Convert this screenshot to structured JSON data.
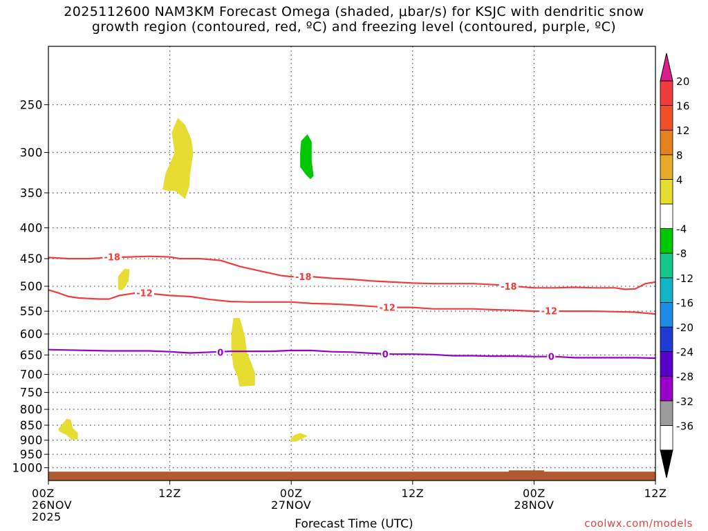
{
  "title_line1": "2025112600 NAM3KM Forecast Omega (shaded, μbar/s) for KSJC with dendritic snow",
  "title_line2": "growth region (contoured, red, ºC) and freezing level (contoured, purple, ºC)",
  "xlabel": "Forecast Time (UTC)",
  "credit": "coolwx.com/models",
  "chart_data": {
    "type": "heatmap",
    "x_axis": {
      "unit": "forecast hour",
      "range": [
        0,
        60
      ],
      "ticks": [
        {
          "x": 0,
          "lines": [
            "00Z",
            "26NOV",
            "2025"
          ]
        },
        {
          "x": 12,
          "lines": [
            "12Z"
          ]
        },
        {
          "x": 24,
          "lines": [
            "00Z",
            "27NOV"
          ]
        },
        {
          "x": 36,
          "lines": [
            "12Z"
          ]
        },
        {
          "x": 48,
          "lines": [
            "00Z",
            "28NOV"
          ]
        },
        {
          "x": 60,
          "lines": [
            "12Z"
          ]
        }
      ]
    },
    "y_axis": {
      "unit": "hPa",
      "scale": "log",
      "inverted": true,
      "range": [
        1050,
        200
      ],
      "ticks": [
        250,
        300,
        350,
        400,
        450,
        500,
        550,
        600,
        650,
        700,
        750,
        800,
        850,
        900,
        950,
        1000
      ]
    },
    "grid": true,
    "colorbar": {
      "ticks": [
        "20",
        "16",
        "12",
        "8",
        "4",
        "-4",
        "-8",
        "-12",
        "-16",
        "-20",
        "-24",
        "-28",
        "-32",
        "-36"
      ],
      "segments": [
        {
          "color": "#ffffff"
        },
        {
          "color": "#9c9c9c"
        },
        {
          "color": "#9600c8"
        },
        {
          "color": "#5a00c8"
        },
        {
          "color": "#1e3cd2"
        },
        {
          "color": "#1e8ce6"
        },
        {
          "color": "#14b4c8"
        },
        {
          "color": "#14c88c"
        },
        {
          "color": "#00c800"
        },
        {
          "color": "#ffffff"
        },
        {
          "color": "#e6dc32"
        },
        {
          "color": "#e6aa28"
        },
        {
          "color": "#e6821e"
        },
        {
          "color": "#f05028"
        },
        {
          "color": "#f03c3c"
        }
      ],
      "bottom_arrow_color": "#000000",
      "top_arrow_color": "#dc1e8c"
    },
    "omega_regions": [
      {
        "color": "#e6dc32",
        "points": [
          [
            11.3,
            345
          ],
          [
            11.6,
            325
          ],
          [
            12.5,
            300
          ],
          [
            12.2,
            278
          ],
          [
            12.8,
            263
          ],
          [
            13.5,
            270
          ],
          [
            14.1,
            285
          ],
          [
            14.3,
            300
          ],
          [
            14.0,
            325
          ],
          [
            13.9,
            342
          ],
          [
            13.5,
            358
          ],
          [
            13.0,
            352
          ],
          [
            12.5,
            347
          ],
          [
            11.8,
            347
          ]
        ]
      },
      {
        "color": "#00c800",
        "points": [
          [
            24.9,
            300
          ],
          [
            25.0,
            287
          ],
          [
            25.6,
            280
          ],
          [
            26.0,
            288
          ],
          [
            26.0,
            310
          ],
          [
            26.2,
            328
          ],
          [
            25.9,
            332
          ],
          [
            25.5,
            327
          ],
          [
            24.9,
            317
          ]
        ]
      },
      {
        "color": "#e6dc32",
        "points": [
          [
            6.9,
            505
          ],
          [
            6.9,
            482
          ],
          [
            7.5,
            468
          ],
          [
            8.0,
            469
          ],
          [
            7.9,
            490
          ],
          [
            7.6,
            500
          ],
          [
            7.3,
            507
          ],
          [
            7.0,
            507
          ]
        ]
      },
      {
        "color": "#e6dc32",
        "points": [
          [
            18.1,
            598
          ],
          [
            18.3,
            565
          ],
          [
            18.9,
            565
          ],
          [
            19.1,
            580
          ],
          [
            19.4,
            605
          ],
          [
            19.6,
            643
          ],
          [
            20.0,
            668
          ],
          [
            20.4,
            695
          ],
          [
            20.4,
            730
          ],
          [
            18.9,
            733
          ],
          [
            18.7,
            705
          ],
          [
            18.3,
            680
          ],
          [
            18.1,
            640
          ]
        ]
      },
      {
        "color": "#e6dc32",
        "points": [
          [
            1.0,
            862
          ],
          [
            1.3,
            850
          ],
          [
            1.8,
            830
          ],
          [
            2.2,
            833
          ],
          [
            2.4,
            860
          ],
          [
            2.9,
            875
          ],
          [
            2.9,
            895
          ],
          [
            2.3,
            898
          ],
          [
            1.8,
            882
          ],
          [
            1.1,
            870
          ]
        ]
      },
      {
        "color": "#e6dc32",
        "points": [
          [
            24.0,
            895
          ],
          [
            24.3,
            883
          ],
          [
            24.9,
            876
          ],
          [
            25.6,
            886
          ],
          [
            25.2,
            892
          ],
          [
            24.6,
            903
          ],
          [
            24.0,
            905
          ]
        ]
      }
    ],
    "ground": {
      "color": "#b05a32",
      "top_hPa": 1015,
      "bump": {
        "x": [
          45.5,
          49.0
        ],
        "top_hPa": 1010
      }
    },
    "contours": [
      {
        "level": "-18",
        "color": "#f03c3c",
        "points": [
          [
            0,
            448
          ],
          [
            2,
            450
          ],
          [
            4,
            450
          ],
          [
            6,
            448
          ],
          [
            8,
            447
          ],
          [
            10,
            446
          ],
          [
            12,
            447
          ],
          [
            13,
            450
          ],
          [
            15,
            450
          ],
          [
            17,
            453
          ],
          [
            19,
            464
          ],
          [
            21,
            472
          ],
          [
            23,
            480
          ],
          [
            24,
            482
          ],
          [
            26,
            482
          ],
          [
            28,
            485
          ],
          [
            30,
            487
          ],
          [
            32,
            490
          ],
          [
            34,
            492
          ],
          [
            36,
            494
          ],
          [
            38,
            495
          ],
          [
            40,
            495
          ],
          [
            42,
            495
          ],
          [
            44,
            497
          ],
          [
            46,
            500
          ],
          [
            48,
            503
          ],
          [
            50,
            503
          ],
          [
            52,
            502
          ],
          [
            54,
            503
          ],
          [
            56,
            503
          ],
          [
            57,
            506
          ],
          [
            58,
            505
          ],
          [
            59,
            495
          ],
          [
            60,
            492
          ]
        ],
        "labels": [
          [
            6.3,
            447
          ],
          [
            25.2,
            482
          ],
          [
            45.5,
            500
          ]
        ]
      },
      {
        "level": "-12",
        "color": "#f03c3c",
        "points": [
          [
            0,
            507
          ],
          [
            1,
            513
          ],
          [
            2,
            520
          ],
          [
            3,
            523
          ],
          [
            5,
            525
          ],
          [
            6,
            525
          ],
          [
            7,
            518
          ],
          [
            8,
            515
          ],
          [
            9,
            512
          ],
          [
            10,
            514
          ],
          [
            12,
            518
          ],
          [
            14,
            520
          ],
          [
            16,
            526
          ],
          [
            18,
            530
          ],
          [
            20,
            531
          ],
          [
            22,
            531
          ],
          [
            24,
            531
          ],
          [
            26,
            534
          ],
          [
            28,
            535
          ],
          [
            30,
            537
          ],
          [
            32,
            540
          ],
          [
            34,
            542
          ],
          [
            36,
            542
          ],
          [
            38,
            545
          ],
          [
            40,
            545
          ],
          [
            42,
            545
          ],
          [
            44,
            547
          ],
          [
            46,
            548
          ],
          [
            48,
            550
          ],
          [
            50,
            550
          ],
          [
            52,
            550
          ],
          [
            54,
            550
          ],
          [
            56,
            551
          ],
          [
            58,
            552
          ],
          [
            60,
            556
          ]
        ],
        "labels": [
          [
            9.5,
            513
          ],
          [
            33.5,
            542
          ],
          [
            49.5,
            549
          ]
        ]
      },
      {
        "level": "0",
        "color": "#9600c8",
        "points": [
          [
            0,
            637
          ],
          [
            2,
            638
          ],
          [
            4,
            639
          ],
          [
            6,
            640
          ],
          [
            8,
            640
          ],
          [
            10,
            640
          ],
          [
            12,
            642
          ],
          [
            14,
            645
          ],
          [
            16,
            643
          ],
          [
            18,
            641
          ],
          [
            20,
            641
          ],
          [
            22,
            641
          ],
          [
            24,
            639
          ],
          [
            26,
            639
          ],
          [
            28,
            642
          ],
          [
            30,
            643
          ],
          [
            32,
            646
          ],
          [
            34,
            648
          ],
          [
            36,
            648
          ],
          [
            38,
            649
          ],
          [
            40,
            652
          ],
          [
            42,
            652
          ],
          [
            44,
            653
          ],
          [
            46,
            653
          ],
          [
            48,
            654
          ],
          [
            50,
            654
          ],
          [
            52,
            657
          ],
          [
            54,
            657
          ],
          [
            56,
            657
          ],
          [
            58,
            657
          ],
          [
            60,
            658
          ]
        ],
        "labels": [
          [
            17.0,
            643
          ],
          [
            33.3,
            648
          ],
          [
            49.7,
            654
          ]
        ]
      }
    ]
  }
}
